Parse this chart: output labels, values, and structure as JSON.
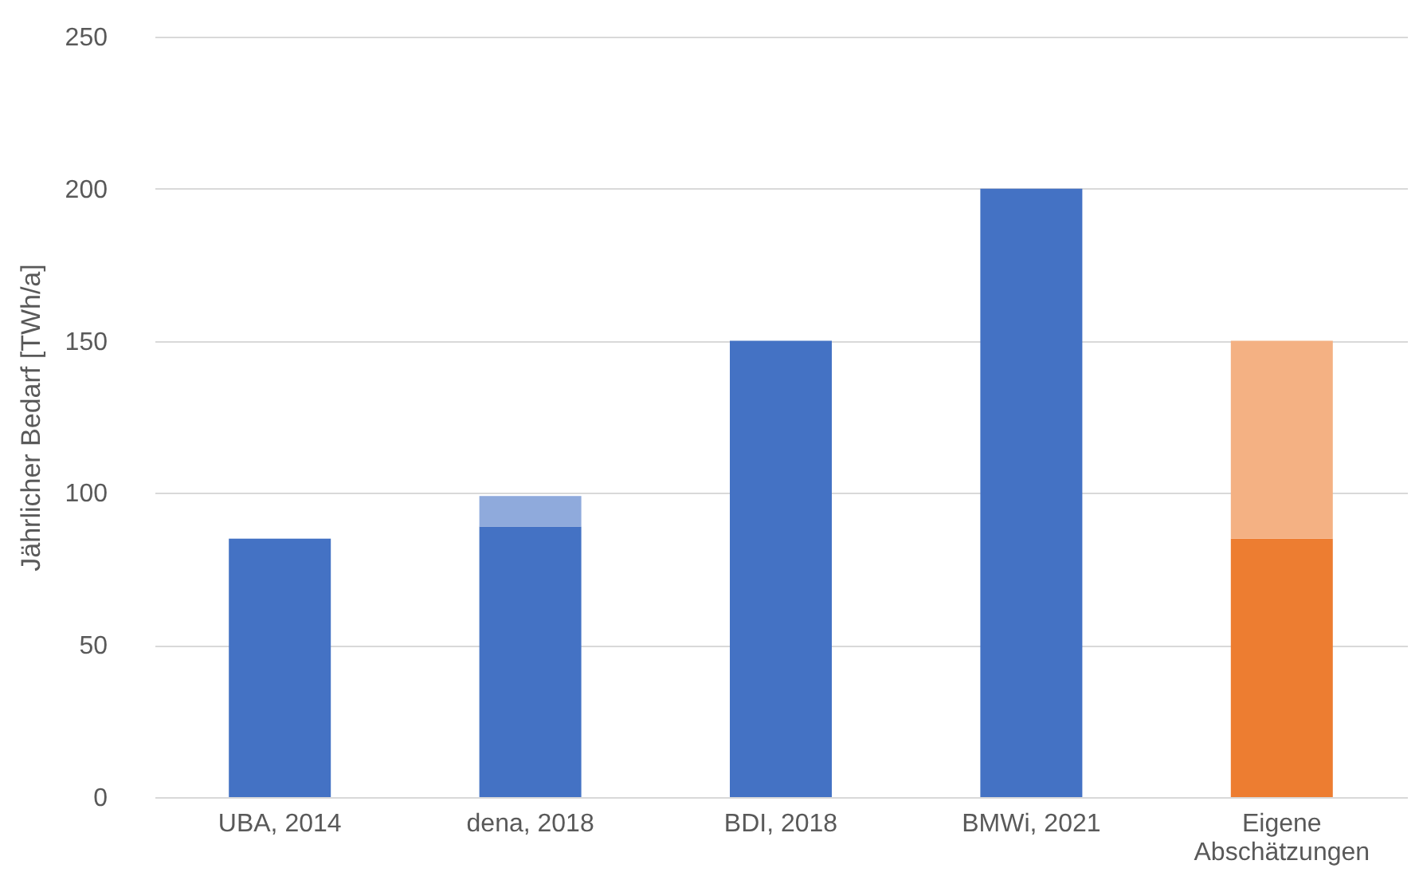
{
  "chart_data": {
    "type": "bar",
    "ylabel": "Jährlicher Bedarf [TWh/a]",
    "categories": [
      "UBA, 2014",
      "dena, 2018",
      "BDI, 2018",
      "BMWi, 2021",
      "Eigene Abschätzungen"
    ],
    "stacked": true,
    "series": [
      {
        "colors": [
          "#4472c4",
          "#4472c4",
          "#4472c4",
          "#4472c4",
          "#ed7d31"
        ],
        "values": [
          85,
          89,
          150,
          200,
          85
        ]
      },
      {
        "colors": [
          "#8faadc",
          "#8faadc",
          "#8faadc",
          "#8faadc",
          "#f4b183"
        ],
        "values": [
          null,
          10,
          null,
          null,
          65
        ]
      }
    ],
    "ylim": [
      0,
      250
    ],
    "yticks": [
      0,
      50,
      100,
      150,
      200,
      250
    ],
    "grid": "y"
  }
}
